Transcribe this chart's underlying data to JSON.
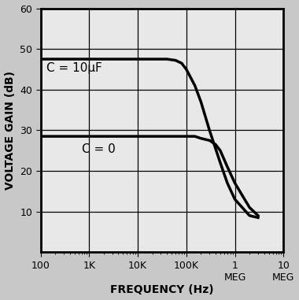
{
  "title": "",
  "xlabel": "FREQUENCY (Hz)",
  "ylabel": "VOLTAGE GAIN (dB)",
  "xlim_log": [
    100,
    10000000
  ],
  "ylim": [
    0,
    60
  ],
  "yticks": [
    10,
    20,
    30,
    40,
    50,
    60
  ],
  "xtick_vals": [
    100,
    1000,
    10000,
    100000,
    1000000,
    10000000
  ],
  "xtick_labels": [
    "100",
    "1K",
    "10K",
    "100K",
    "1\nMEG",
    "10\nMEG"
  ],
  "curve_c10uF_x": [
    100,
    500,
    1000,
    3000,
    5000,
    10000,
    20000,
    40000,
    60000,
    80000,
    100000,
    150000,
    200000,
    300000,
    500000,
    700000,
    1000000,
    2000000,
    3000000
  ],
  "curve_c10uF_y": [
    47.5,
    47.5,
    47.5,
    47.5,
    47.5,
    47.5,
    47.5,
    47.5,
    47.2,
    46.5,
    45.0,
    41.0,
    37.0,
    30.0,
    22.0,
    17.0,
    13.0,
    9.0,
    8.5
  ],
  "curve_c0_x": [
    100,
    500,
    1000,
    5000,
    10000,
    50000,
    100000,
    150000,
    200000,
    300000,
    400000,
    500000,
    700000,
    1000000,
    2000000,
    3000000
  ],
  "curve_c0_y": [
    28.5,
    28.5,
    28.5,
    28.5,
    28.5,
    28.5,
    28.5,
    28.5,
    28.0,
    27.5,
    26.5,
    25.0,
    21.0,
    17.0,
    11.0,
    9.0
  ],
  "label_c10uF": "C = 10μF",
  "label_c0": "C = 0",
  "line_color": "#000000",
  "plot_bg_color": "#e8e8e8",
  "fig_bg_color": "#c8c8c8",
  "grid_color": "#000000",
  "label_fontsize": 10,
  "tick_fontsize": 9,
  "annot_fontsize": 11
}
